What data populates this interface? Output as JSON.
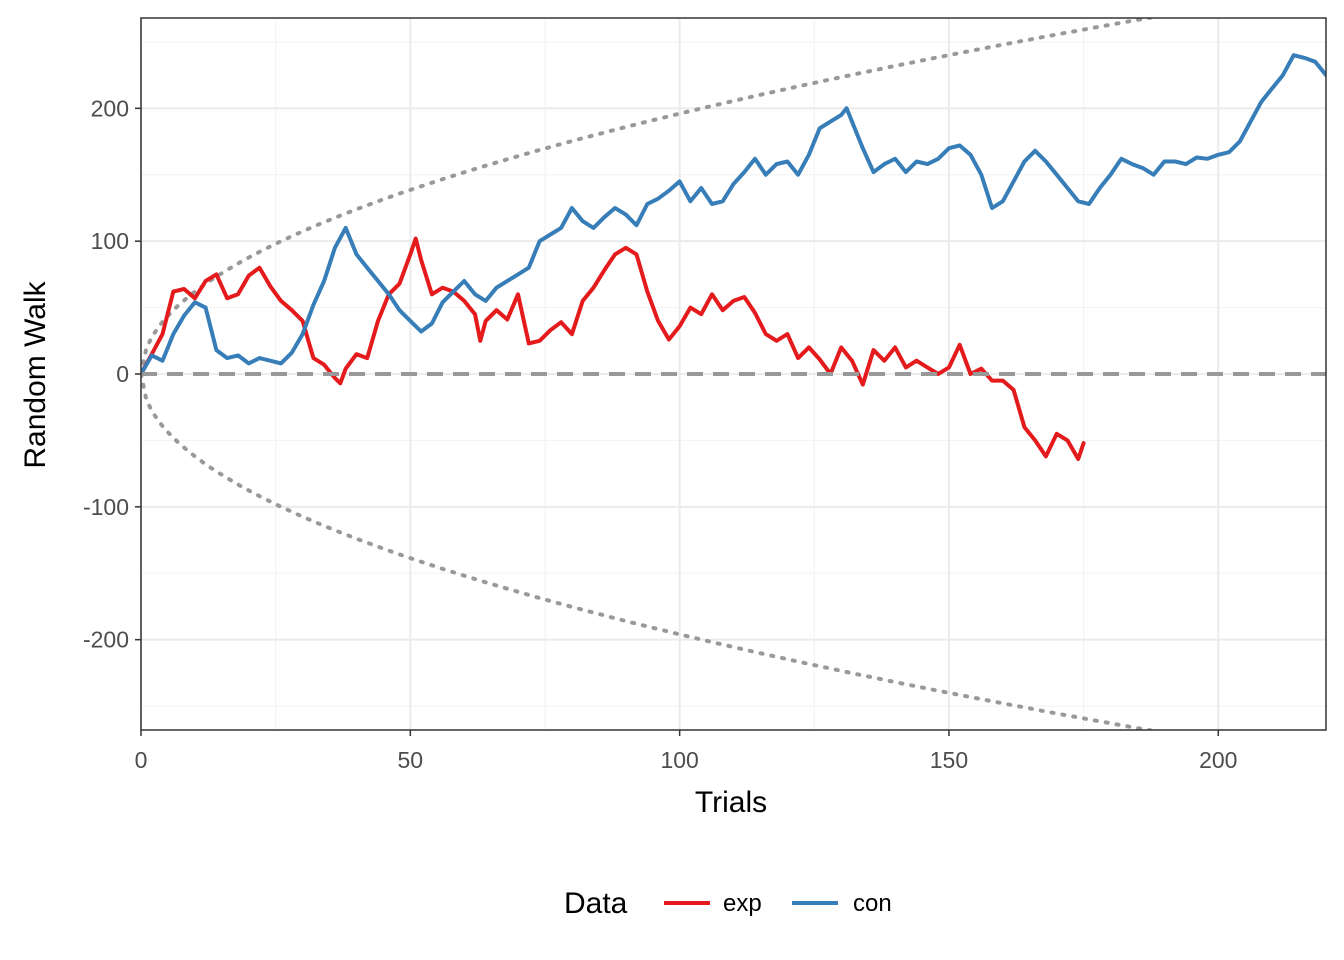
{
  "chart_data": {
    "type": "line",
    "title": "",
    "xlabel": "Trials",
    "ylabel": "Random Walk",
    "xlim": [
      0,
      220
    ],
    "ylim": [
      -268,
      268
    ],
    "x_ticks": [
      0,
      50,
      100,
      150,
      200
    ],
    "y_ticks": [
      -200,
      -100,
      0,
      100,
      200
    ],
    "x_tick_labels": [
      "0",
      "50",
      "100",
      "150",
      "200"
    ],
    "y_tick_labels": [
      "-200",
      "-100",
      "0",
      "100",
      "200"
    ],
    "grid": true,
    "legend": {
      "position": "bottom",
      "title": "Data"
    },
    "reference_lines": {
      "zero_line": {
        "y": 0,
        "style": "dashed",
        "color": "#999999"
      },
      "boundary": {
        "style": "dotted",
        "color": "#999999",
        "form": "±k·sqrt(x)",
        "k": 19.6
      }
    },
    "series": [
      {
        "name": "exp",
        "color": "#e41a1c",
        "x": [
          0,
          2,
          4,
          6,
          8,
          10,
          12,
          14,
          16,
          18,
          20,
          22,
          24,
          26,
          28,
          30,
          32,
          34,
          36,
          37,
          38,
          40,
          42,
          44,
          46,
          48,
          50,
          51,
          52,
          54,
          56,
          58,
          60,
          62,
          63,
          64,
          66,
          68,
          70,
          72,
          74,
          76,
          78,
          80,
          82,
          84,
          86,
          88,
          90,
          92,
          94,
          96,
          98,
          100,
          102,
          104,
          106,
          108,
          110,
          112,
          114,
          116,
          118,
          120,
          122,
          124,
          126,
          128,
          130,
          132,
          134,
          136,
          138,
          140,
          142,
          144,
          146,
          148,
          150,
          152,
          154,
          156,
          158,
          160,
          162,
          164,
          166,
          168,
          170,
          172,
          174,
          175
        ],
        "values": [
          0,
          15,
          30,
          62,
          64,
          57,
          70,
          75,
          57,
          60,
          74,
          80,
          66,
          55,
          48,
          40,
          12,
          7,
          -3,
          -7,
          4,
          15,
          12,
          40,
          60,
          68,
          90,
          102,
          86,
          60,
          65,
          62,
          55,
          45,
          25,
          40,
          48,
          41,
          60,
          23,
          25,
          33,
          39,
          30,
          55,
          65,
          78,
          90,
          95,
          90,
          62,
          40,
          26,
          36,
          50,
          45,
          60,
          48,
          55,
          58,
          46,
          30,
          25,
          30,
          12,
          20,
          11,
          0,
          20,
          10,
          -8,
          18,
          10,
          20,
          5,
          10,
          5,
          0,
          5,
          22,
          0,
          4,
          -5,
          -5,
          -12,
          -40,
          -50,
          -62,
          -45,
          -50,
          -64,
          -52
        ]
      },
      {
        "name": "con",
        "color": "#377eb8",
        "x": [
          0,
          2,
          4,
          6,
          8,
          10,
          12,
          14,
          16,
          18,
          20,
          22,
          24,
          26,
          28,
          30,
          32,
          34,
          36,
          38,
          40,
          42,
          44,
          46,
          48,
          50,
          52,
          54,
          56,
          58,
          60,
          62,
          64,
          66,
          68,
          70,
          72,
          74,
          76,
          78,
          80,
          82,
          84,
          86,
          88,
          90,
          92,
          94,
          96,
          98,
          100,
          102,
          104,
          106,
          108,
          110,
          112,
          114,
          116,
          118,
          120,
          122,
          124,
          126,
          128,
          130,
          131,
          132,
          134,
          136,
          138,
          140,
          142,
          144,
          146,
          148,
          150,
          152,
          154,
          156,
          158,
          160,
          162,
          164,
          166,
          168,
          170,
          172,
          174,
          176,
          178,
          180,
          182,
          184,
          186,
          188,
          190,
          192,
          194,
          196,
          198,
          200,
          202,
          204,
          206,
          208,
          210,
          212,
          214,
          216,
          218,
          220
        ],
        "values": [
          0,
          14,
          10,
          30,
          44,
          54,
          50,
          18,
          12,
          14,
          8,
          12,
          10,
          8,
          16,
          30,
          52,
          70,
          95,
          110,
          90,
          80,
          70,
          60,
          48,
          40,
          32,
          38,
          54,
          62,
          70,
          60,
          55,
          65,
          70,
          75,
          80,
          100,
          105,
          110,
          125,
          115,
          110,
          118,
          125,
          120,
          112,
          128,
          132,
          138,
          145,
          130,
          140,
          128,
          130,
          143,
          152,
          162,
          150,
          158,
          160,
          150,
          165,
          185,
          190,
          195,
          200,
          190,
          170,
          152,
          158,
          162,
          152,
          160,
          158,
          162,
          170,
          172,
          165,
          150,
          125,
          130,
          145,
          160,
          168,
          160,
          150,
          140,
          130,
          128,
          140,
          150,
          162,
          158,
          155,
          150,
          160,
          160,
          158,
          163,
          162,
          165,
          167,
          175,
          190,
          205,
          215,
          225,
          240,
          238,
          235,
          225
        ]
      }
    ]
  }
}
